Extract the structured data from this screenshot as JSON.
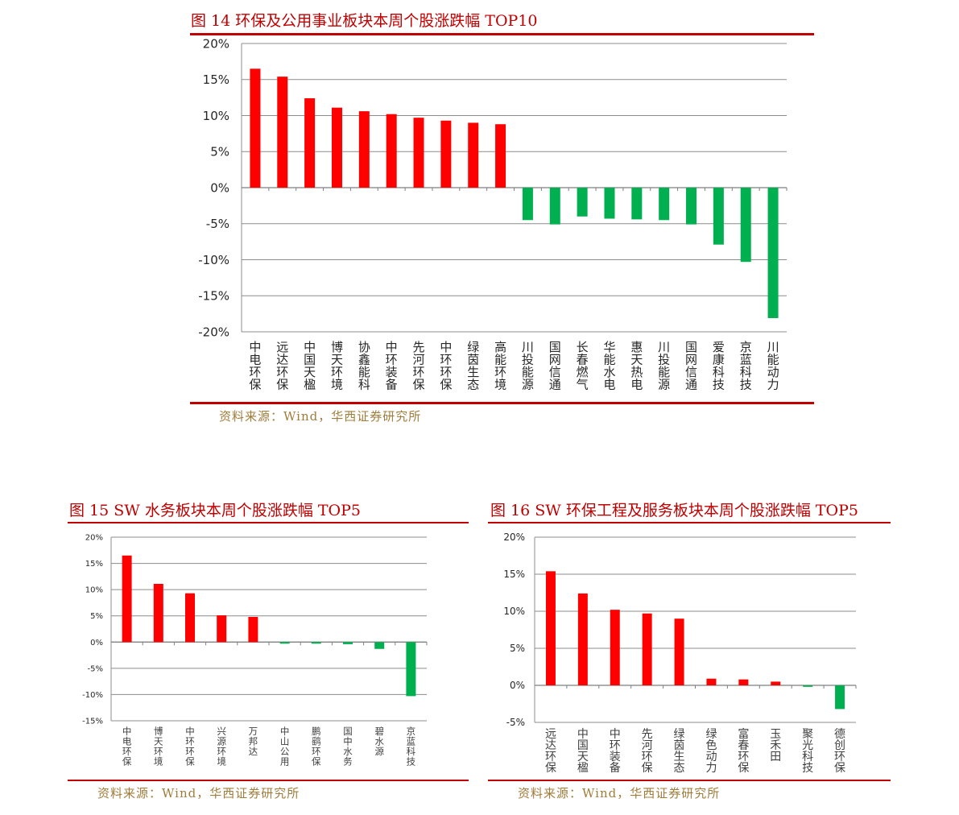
{
  "colors": {
    "positive": "#ff0000",
    "negative": "#00b050",
    "title": "#c00000",
    "rule": "#c00000",
    "source": "#a07c3a",
    "grid": "#8c8c8c"
  },
  "figure14": {
    "title": "图 14 环保及公用事业板块本周个股涨跌幅 TOP10",
    "source": "资料来源：Wind，华西证券研究所",
    "chart_data": {
      "type": "bar",
      "title": "",
      "xlabel": "",
      "ylabel": "",
      "ylim": [
        -20,
        20
      ],
      "yticks": [
        "20%",
        "15%",
        "10%",
        "5%",
        "0%",
        "-5%",
        "-10%",
        "-15%",
        "-20%"
      ],
      "grid": true,
      "categories": [
        "中电环保",
        "远达环保",
        "中国天楹",
        "博天环境",
        "协鑫能科",
        "中环装备",
        "先河环保",
        "中环环保",
        "绿茵生态",
        "高能环境",
        "川投能源",
        "国网信通",
        "长春燃气",
        "华能水电",
        "惠天热电",
        "川投能源",
        "国网信通",
        "爱康科技",
        "京蓝科技",
        "川能动力"
      ],
      "values": [
        16.5,
        15.4,
        12.4,
        11.1,
        10.6,
        10.2,
        9.7,
        9.3,
        9.0,
        8.8,
        -4.5,
        -5.1,
        -4.0,
        -4.3,
        -4.4,
        -4.5,
        -5.1,
        -7.9,
        -10.3,
        -18.1
      ]
    }
  },
  "figure15": {
    "title": "图 15 SW 水务板块本周个股涨跌幅 TOP5",
    "source": "资料来源：Wind，华西证券研究所",
    "chart_data": {
      "type": "bar",
      "title": "",
      "xlabel": "",
      "ylabel": "",
      "ylim": [
        -15,
        20
      ],
      "yticks": [
        "20%",
        "15%",
        "10%",
        "5%",
        "0%",
        "-5%",
        "-10%",
        "-15%"
      ],
      "grid": true,
      "categories": [
        "中电环保",
        "博天环境",
        "中环环保",
        "兴源环境",
        "万邦达",
        "中山公用",
        "鹏鹞环保",
        "国中水务",
        "碧水源",
        "京蓝科技"
      ],
      "values": [
        16.5,
        11.1,
        9.3,
        5.1,
        4.8,
        -0.3,
        -0.3,
        -0.4,
        -1.3,
        -10.3
      ]
    }
  },
  "figure16": {
    "title": "图 16 SW 环保工程及服务板块本周个股涨跌幅 TOP5",
    "source": "资料来源：Wind，华西证券研究所",
    "chart_data": {
      "type": "bar",
      "title": "",
      "xlabel": "",
      "ylabel": "",
      "ylim": [
        -5,
        20
      ],
      "yticks": [
        "20%",
        "15%",
        "10%",
        "5%",
        "0%",
        "-5%"
      ],
      "grid": true,
      "categories": [
        "远达环保",
        "中国天楹",
        "中环装备",
        "先河环保",
        "绿茵生态",
        "绿色动力",
        "富春环保",
        "玉禾田",
        "聚光科技",
        "德创环保"
      ],
      "values": [
        15.4,
        12.4,
        10.2,
        9.7,
        9.0,
        0.9,
        0.8,
        0.5,
        -0.2,
        -3.2
      ]
    }
  }
}
